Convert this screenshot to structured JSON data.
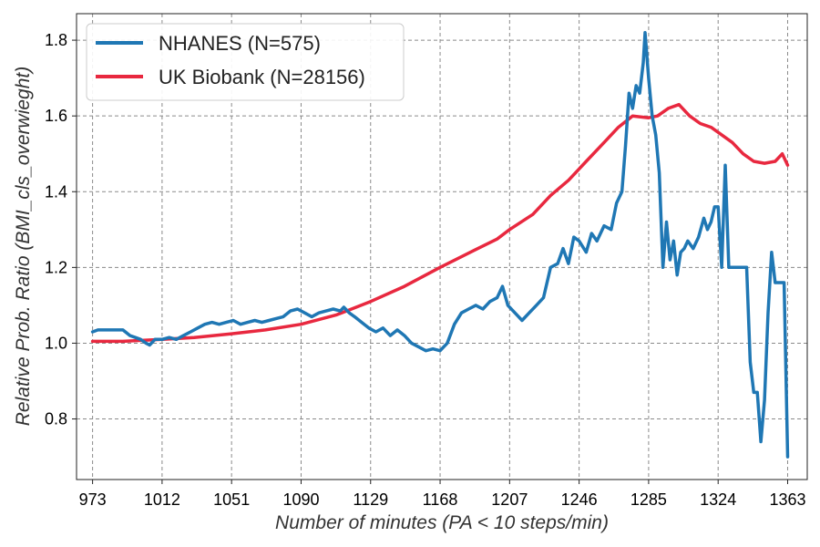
{
  "chart_data": {
    "type": "line",
    "xlabel": "Number of minutes (PA < 10 steps/min)",
    "ylabel": "Relative Prob. Ratio (BMI_cls_overwieght)",
    "x_ticks": [
      973,
      1012,
      1051,
      1090,
      1129,
      1168,
      1207,
      1246,
      1285,
      1324,
      1363
    ],
    "y_ticks": [
      0.8,
      1.0,
      1.2,
      1.4,
      1.6,
      1.8
    ],
    "xlim": [
      964,
      1374
    ],
    "ylim": [
      0.64,
      1.87
    ],
    "grid": true,
    "legend_position": "top-left",
    "series": [
      {
        "name": "NHANES (N=575)",
        "color": "#1f77b4",
        "points": [
          [
            973,
            1.03
          ],
          [
            976,
            1.035
          ],
          [
            980,
            1.035
          ],
          [
            985,
            1.035
          ],
          [
            990,
            1.035
          ],
          [
            994,
            1.02
          ],
          [
            997,
            1.015
          ],
          [
            1000,
            1.01
          ],
          [
            1003,
            1.0
          ],
          [
            1005,
            0.995
          ],
          [
            1008,
            1.01
          ],
          [
            1012,
            1.01
          ],
          [
            1016,
            1.015
          ],
          [
            1020,
            1.01
          ],
          [
            1024,
            1.02
          ],
          [
            1028,
            1.03
          ],
          [
            1032,
            1.04
          ],
          [
            1036,
            1.05
          ],
          [
            1040,
            1.055
          ],
          [
            1044,
            1.05
          ],
          [
            1048,
            1.055
          ],
          [
            1052,
            1.06
          ],
          [
            1056,
            1.05
          ],
          [
            1060,
            1.055
          ],
          [
            1064,
            1.06
          ],
          [
            1068,
            1.055
          ],
          [
            1072,
            1.06
          ],
          [
            1076,
            1.065
          ],
          [
            1080,
            1.07
          ],
          [
            1084,
            1.085
          ],
          [
            1088,
            1.09
          ],
          [
            1092,
            1.08
          ],
          [
            1096,
            1.07
          ],
          [
            1100,
            1.08
          ],
          [
            1104,
            1.085
          ],
          [
            1108,
            1.09
          ],
          [
            1112,
            1.085
          ],
          [
            1114,
            1.095
          ],
          [
            1117,
            1.08
          ],
          [
            1120,
            1.07
          ],
          [
            1124,
            1.055
          ],
          [
            1128,
            1.04
          ],
          [
            1132,
            1.03
          ],
          [
            1136,
            1.04
          ],
          [
            1140,
            1.02
          ],
          [
            1144,
            1.035
          ],
          [
            1148,
            1.02
          ],
          [
            1152,
            1.0
          ],
          [
            1156,
            0.99
          ],
          [
            1160,
            0.98
          ],
          [
            1164,
            0.985
          ],
          [
            1168,
            0.98
          ],
          [
            1172,
            1.0
          ],
          [
            1176,
            1.05
          ],
          [
            1180,
            1.08
          ],
          [
            1184,
            1.09
          ],
          [
            1188,
            1.1
          ],
          [
            1192,
            1.09
          ],
          [
            1196,
            1.11
          ],
          [
            1200,
            1.12
          ],
          [
            1203,
            1.15
          ],
          [
            1206,
            1.1
          ],
          [
            1210,
            1.08
          ],
          [
            1214,
            1.06
          ],
          [
            1218,
            1.08
          ],
          [
            1222,
            1.1
          ],
          [
            1226,
            1.12
          ],
          [
            1230,
            1.2
          ],
          [
            1234,
            1.21
          ],
          [
            1237,
            1.25
          ],
          [
            1240,
            1.21
          ],
          [
            1243,
            1.28
          ],
          [
            1246,
            1.27
          ],
          [
            1250,
            1.24
          ],
          [
            1253,
            1.29
          ],
          [
            1256,
            1.27
          ],
          [
            1260,
            1.31
          ],
          [
            1264,
            1.3
          ],
          [
            1267,
            1.37
          ],
          [
            1270,
            1.4
          ],
          [
            1272,
            1.52
          ],
          [
            1274,
            1.66
          ],
          [
            1276,
            1.62
          ],
          [
            1278,
            1.68
          ],
          [
            1280,
            1.66
          ],
          [
            1282,
            1.74
          ],
          [
            1283,
            1.82
          ],
          [
            1285,
            1.7
          ],
          [
            1287,
            1.6
          ],
          [
            1289,
            1.55
          ],
          [
            1291,
            1.45
          ],
          [
            1293,
            1.2
          ],
          [
            1295,
            1.32
          ],
          [
            1297,
            1.22
          ],
          [
            1299,
            1.27
          ],
          [
            1301,
            1.18
          ],
          [
            1303,
            1.24
          ],
          [
            1305,
            1.25
          ],
          [
            1307,
            1.27
          ],
          [
            1310,
            1.25
          ],
          [
            1313,
            1.28
          ],
          [
            1316,
            1.33
          ],
          [
            1318,
            1.3
          ],
          [
            1320,
            1.32
          ],
          [
            1322,
            1.36
          ],
          [
            1324,
            1.36
          ],
          [
            1326,
            1.2
          ],
          [
            1328,
            1.47
          ],
          [
            1330,
            1.2
          ],
          [
            1333,
            1.2
          ],
          [
            1336,
            1.2
          ],
          [
            1340,
            1.2
          ],
          [
            1342,
            0.95
          ],
          [
            1344,
            0.87
          ],
          [
            1346,
            0.87
          ],
          [
            1348,
            0.74
          ],
          [
            1350,
            0.85
          ],
          [
            1352,
            1.08
          ],
          [
            1354,
            1.24
          ],
          [
            1356,
            1.16
          ],
          [
            1359,
            1.16
          ],
          [
            1361,
            1.16
          ],
          [
            1363,
            0.7
          ]
        ]
      },
      {
        "name": "UK Biobank (N=28156)",
        "color": "#e8283f",
        "points": [
          [
            973,
            1.005
          ],
          [
            990,
            1.005
          ],
          [
            1012,
            1.01
          ],
          [
            1030,
            1.015
          ],
          [
            1051,
            1.025
          ],
          [
            1070,
            1.035
          ],
          [
            1090,
            1.05
          ],
          [
            1110,
            1.075
          ],
          [
            1129,
            1.11
          ],
          [
            1148,
            1.15
          ],
          [
            1168,
            1.2
          ],
          [
            1187,
            1.245
          ],
          [
            1200,
            1.275
          ],
          [
            1207,
            1.3
          ],
          [
            1220,
            1.34
          ],
          [
            1230,
            1.39
          ],
          [
            1240,
            1.43
          ],
          [
            1250,
            1.48
          ],
          [
            1260,
            1.53
          ],
          [
            1268,
            1.57
          ],
          [
            1276,
            1.6
          ],
          [
            1285,
            1.595
          ],
          [
            1290,
            1.6
          ],
          [
            1296,
            1.62
          ],
          [
            1302,
            1.63
          ],
          [
            1308,
            1.6
          ],
          [
            1314,
            1.58
          ],
          [
            1320,
            1.57
          ],
          [
            1326,
            1.55
          ],
          [
            1332,
            1.53
          ],
          [
            1338,
            1.5
          ],
          [
            1344,
            1.48
          ],
          [
            1350,
            1.475
          ],
          [
            1356,
            1.48
          ],
          [
            1360,
            1.5
          ],
          [
            1363,
            1.47
          ]
        ]
      }
    ]
  }
}
